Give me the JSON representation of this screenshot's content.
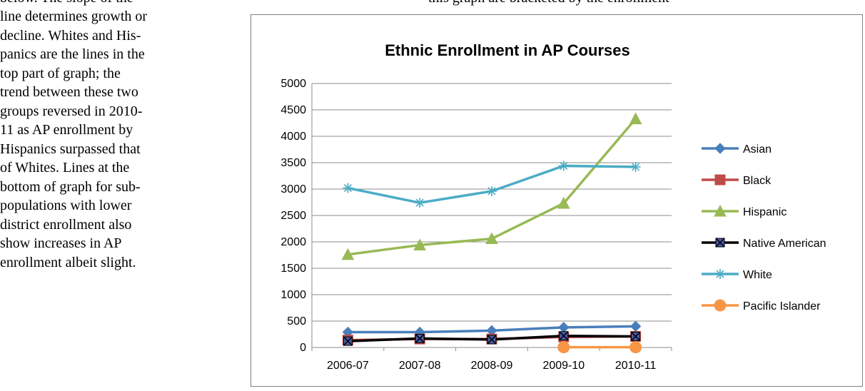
{
  "document": {
    "top_fragment_left": "below.  The slope of the",
    "top_fragment_right": "this graph are bracketed by the enrollment",
    "paragraph_lines": [
      "line determines growth or",
      "decline. Whites and His-",
      "panics are the lines in the",
      "top part of graph; the",
      "trend between these two",
      "groups reversed in 2010-",
      "11 as AP enrollment by",
      "Hispanics surpassed that",
      "of Whites.  Lines at the",
      "bottom of graph for sub-",
      "populations with lower",
      "district enrollment also",
      "show increases in AP",
      "enrollment albeit slight."
    ]
  },
  "chart_data": {
    "type": "line",
    "title": "Ethnic Enrollment in AP Courses",
    "xlabel": "",
    "ylabel": "",
    "categories": [
      "2006-07",
      "2007-08",
      "2008-09",
      "2009-10",
      "2010-11"
    ],
    "ylim": [
      0,
      5000
    ],
    "yticks": [
      0,
      500,
      1000,
      1500,
      2000,
      2500,
      3000,
      3500,
      4000,
      4500,
      5000
    ],
    "grid": "horizontal",
    "legend_position": "right",
    "series": [
      {
        "name": "Asian",
        "color": "#4a7ebb",
        "marker": "diamond",
        "values": [
          290,
          290,
          320,
          380,
          400
        ]
      },
      {
        "name": "Black",
        "color": "#be4b48",
        "marker": "square",
        "values": [
          140,
          160,
          160,
          200,
          210
        ]
      },
      {
        "name": "Hispanic",
        "color": "#98b954",
        "marker": "triangle",
        "values": [
          1760,
          1940,
          2060,
          2730,
          4330
        ]
      },
      {
        "name": "Native American",
        "color": "#000000",
        "marker": "x-square",
        "values": [
          120,
          170,
          150,
          220,
          210
        ]
      },
      {
        "name": "White",
        "color": "#4bacc6",
        "marker": "asterisk",
        "values": [
          3020,
          2740,
          2960,
          3440,
          3420
        ]
      },
      {
        "name": "Pacific Islander",
        "color": "#f79646",
        "marker": "circle",
        "values": [
          null,
          null,
          null,
          5,
          5
        ]
      }
    ]
  }
}
